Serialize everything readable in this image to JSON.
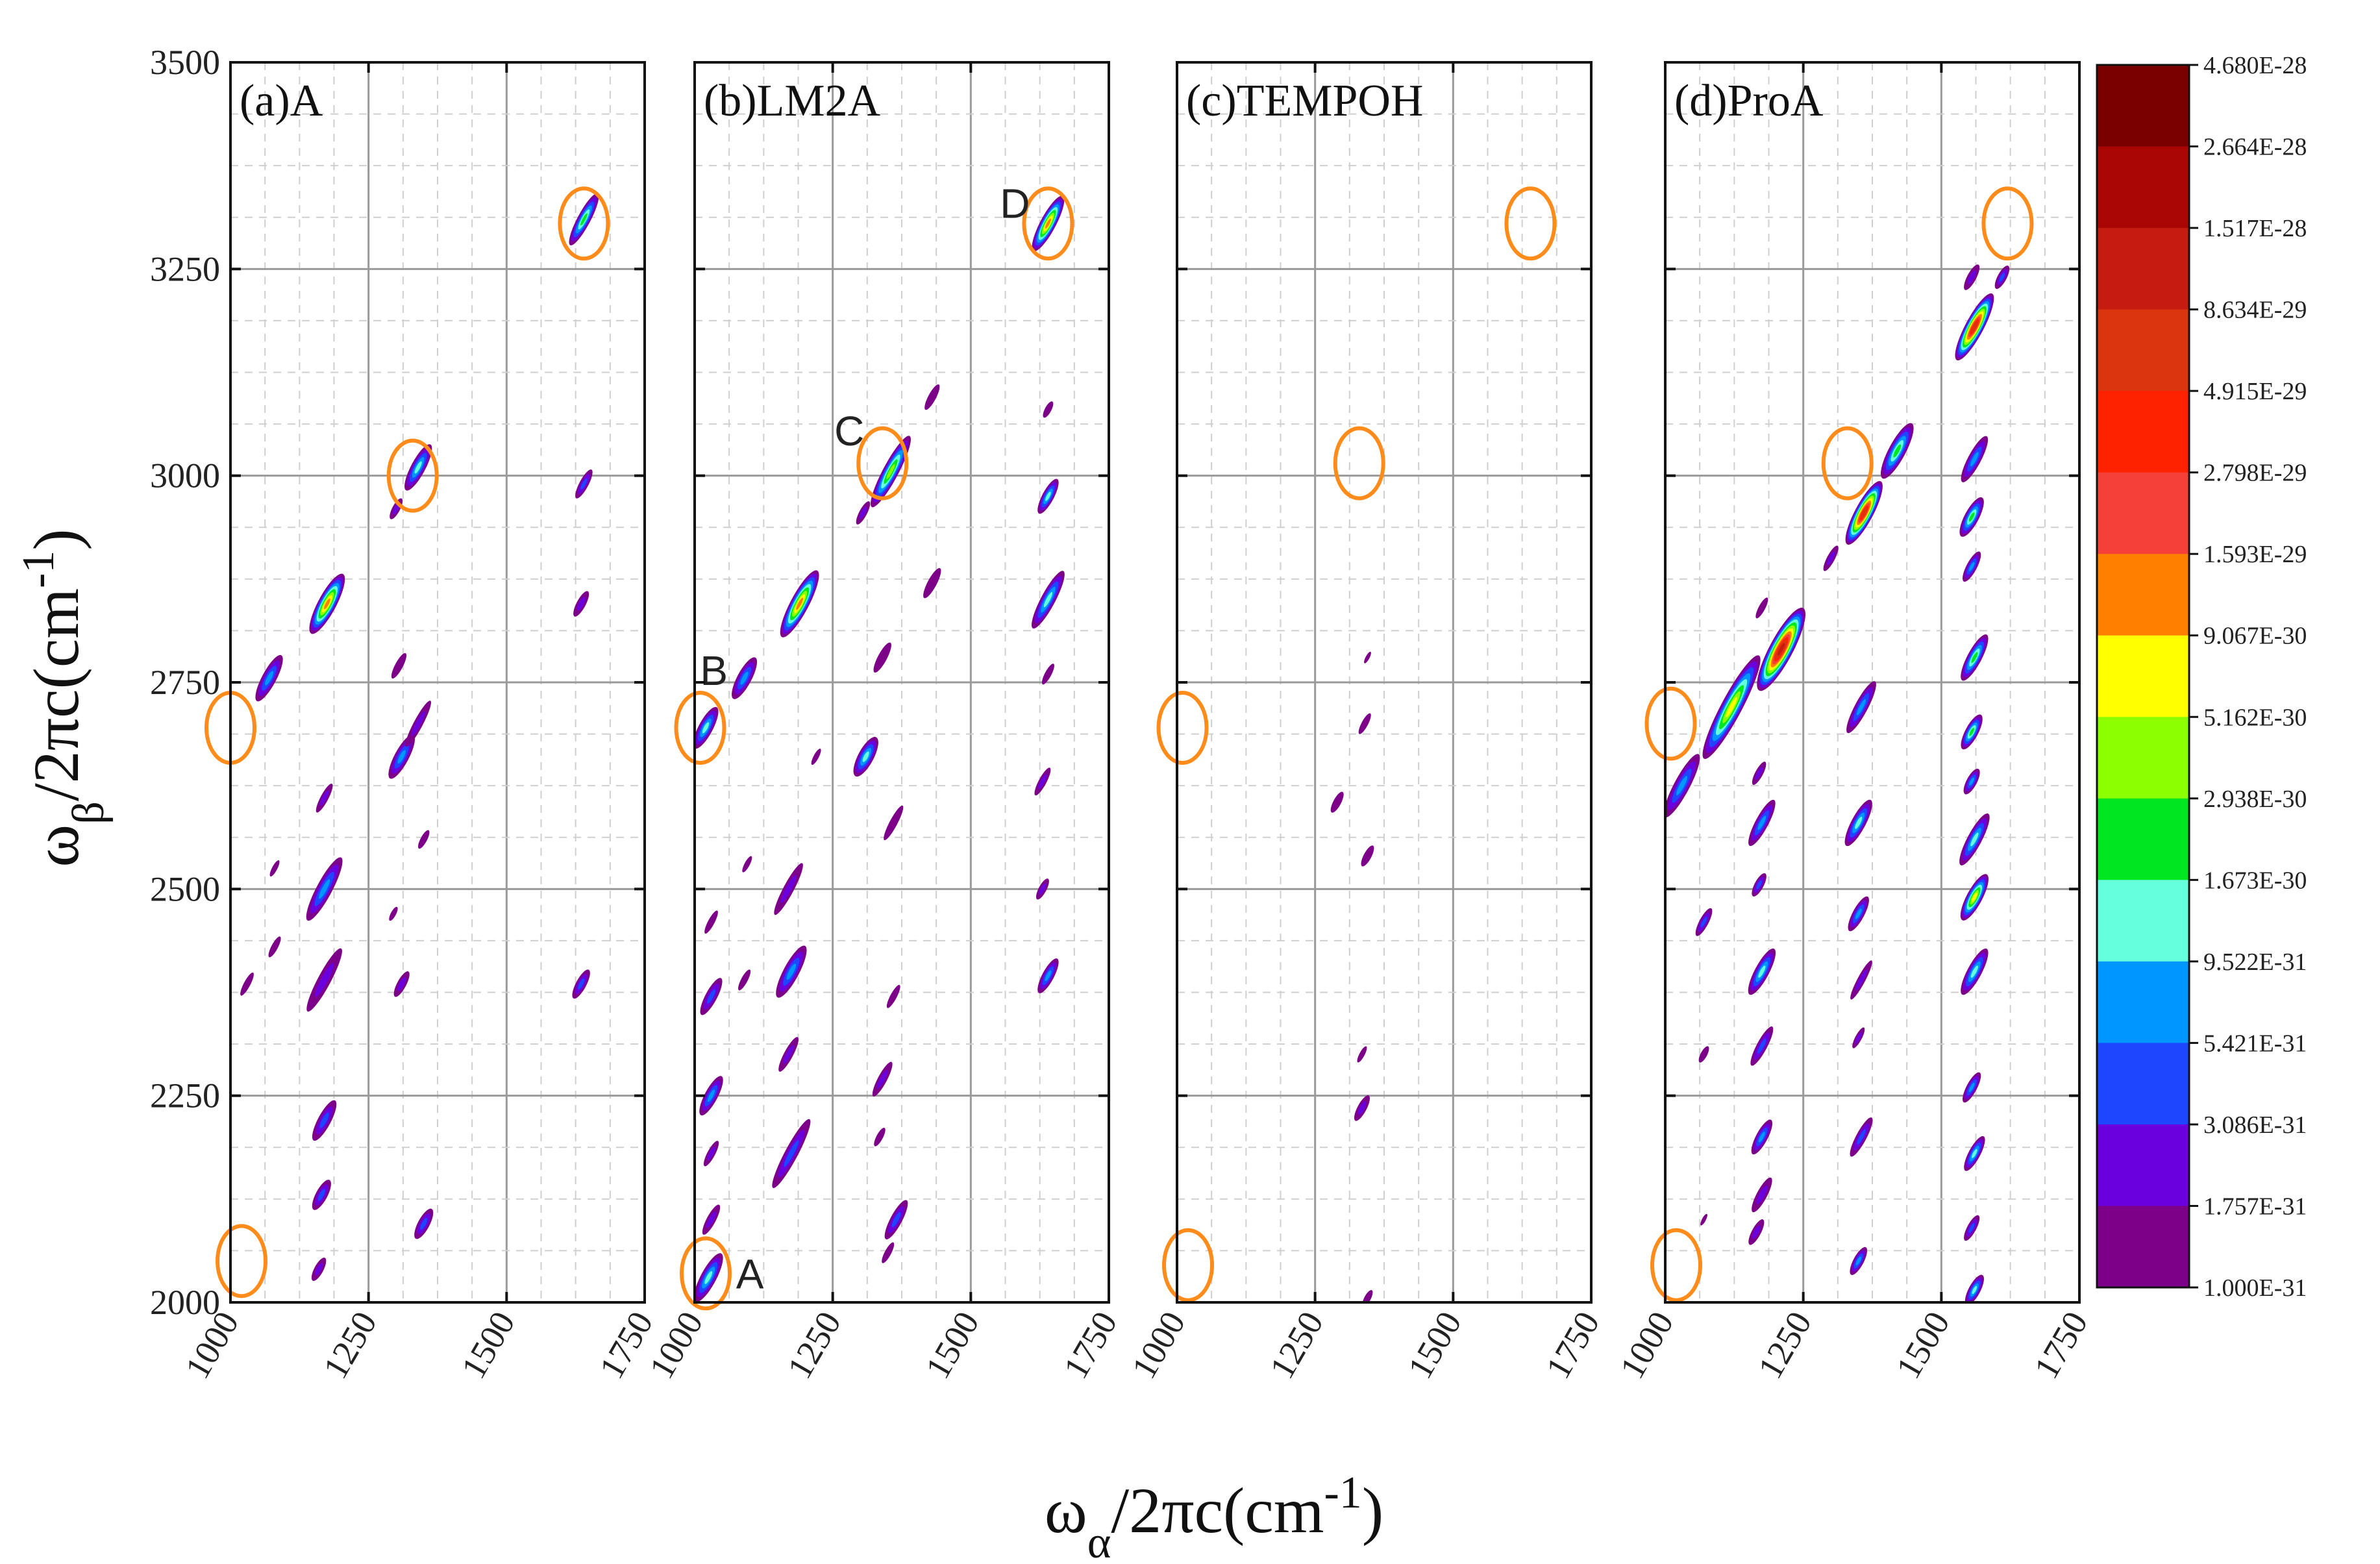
{
  "chart_data": {
    "type": "heatmap",
    "title": "",
    "xlabel": "ω_α/2πc(cm⁻¹)",
    "ylabel": "ω_β/2πc(cm⁻¹)",
    "xlabel_parts": {
      "main": "ω",
      "sub": "α",
      "rest": "/2πc(cm",
      "sup": "-1",
      "close": ")"
    },
    "ylabel_parts": {
      "main": "ω",
      "sub": "β",
      "rest": "/2πc(cm",
      "sup": "-1",
      "close": ")"
    },
    "xlim": [
      1000,
      1750
    ],
    "ylim": [
      2000,
      3500
    ],
    "x_ticks": [
      1000,
      1250,
      1500,
      1750
    ],
    "x_tick_labels": [
      "1000",
      "1250",
      "1500",
      "1750"
    ],
    "y_ticks": [
      2000,
      2250,
      2500,
      2750,
      3000,
      3250,
      3500
    ],
    "y_tick_labels": [
      "2000",
      "2250",
      "2500",
      "2750",
      "3000",
      "3250",
      "3500"
    ],
    "grid": true,
    "ellipse_color": "#ff8c1a",
    "colorbar": {
      "labels": [
        "4.680E-28",
        "2.664E-28",
        "1.517E-28",
        "8.634E-29",
        "4.915E-29",
        "2.798E-29",
        "1.593E-29",
        "9.067E-30",
        "5.162E-30",
        "2.938E-30",
        "1.673E-30",
        "9.522E-31",
        "5.421E-31",
        "3.086E-31",
        "1.757E-31",
        "1.000E-31"
      ],
      "colors": [
        "#7a0000",
        "#aa0606",
        "#c41c10",
        "#d9350e",
        "#ff2200",
        "#f5403a",
        "#ff8000",
        "#ffff00",
        "#8cff00",
        "#00e620",
        "#66ffdd",
        "#0096ff",
        "#1e46ff",
        "#6a00dd",
        "#7d0088"
      ]
    },
    "panels": [
      {
        "title": "(a)A",
        "ellipses": [
          [
            1640,
            3305
          ],
          [
            1330,
            3000
          ],
          [
            1000,
            2695
          ],
          [
            1020,
            2050
          ]
        ],
        "labels": [],
        "peaks": [
          {
            "x": 1640,
            "y": 3310,
            "level": 9,
            "len": 45,
            "wid": 10
          },
          {
            "x": 1340,
            "y": 3010,
            "level": 10,
            "len": 40,
            "wid": 11
          },
          {
            "x": 1300,
            "y": 2960,
            "level": 13,
            "len": 18,
            "wid": 6
          },
          {
            "x": 1175,
            "y": 2845,
            "level": 6,
            "len": 52,
            "wid": 14
          },
          {
            "x": 1070,
            "y": 2755,
            "level": 11,
            "len": 40,
            "wid": 11
          },
          {
            "x": 1310,
            "y": 2660,
            "level": 11,
            "len": 38,
            "wid": 11
          },
          {
            "x": 1340,
            "y": 2700,
            "level": 13,
            "len": 40,
            "wid": 7
          },
          {
            "x": 1305,
            "y": 2770,
            "level": 14,
            "len": 22,
            "wid": 6
          },
          {
            "x": 1640,
            "y": 2990,
            "level": 12,
            "len": 25,
            "wid": 7
          },
          {
            "x": 1635,
            "y": 2845,
            "level": 13,
            "len": 22,
            "wid": 7
          },
          {
            "x": 1170,
            "y": 2610,
            "level": 13,
            "len": 25,
            "wid": 6
          },
          {
            "x": 1170,
            "y": 2500,
            "level": 11,
            "len": 55,
            "wid": 12
          },
          {
            "x": 1170,
            "y": 2390,
            "level": 13,
            "len": 55,
            "wid": 10
          },
          {
            "x": 1310,
            "y": 2385,
            "level": 13,
            "len": 22,
            "wid": 7
          },
          {
            "x": 1635,
            "y": 2385,
            "level": 12,
            "len": 25,
            "wid": 8
          },
          {
            "x": 1170,
            "y": 2220,
            "level": 12,
            "len": 35,
            "wid": 10
          },
          {
            "x": 1165,
            "y": 2130,
            "level": 12,
            "len": 26,
            "wid": 9
          },
          {
            "x": 1160,
            "y": 2040,
            "level": 13,
            "len": 20,
            "wid": 7
          },
          {
            "x": 1350,
            "y": 2095,
            "level": 12,
            "len": 26,
            "wid": 9
          },
          {
            "x": 1080,
            "y": 2430,
            "level": 14,
            "len": 18,
            "wid": 5
          },
          {
            "x": 1030,
            "y": 2385,
            "level": 14,
            "len": 20,
            "wid": 5
          },
          {
            "x": 1080,
            "y": 2525,
            "level": 14,
            "len": 14,
            "wid": 4
          },
          {
            "x": 1350,
            "y": 2560,
            "level": 14,
            "len": 16,
            "wid": 5
          },
          {
            "x": 1295,
            "y": 2470,
            "level": 14,
            "len": 12,
            "wid": 4
          }
        ]
      },
      {
        "title": "(b)LM2A",
        "ellipses": [
          [
            1640,
            3305
          ],
          [
            1340,
            3015
          ],
          [
            1010,
            2695
          ],
          [
            1020,
            2035
          ]
        ],
        "labels": [
          {
            "text": "A",
            "x": 1100,
            "y": 2030
          },
          {
            "text": "B",
            "x": 1035,
            "y": 2760
          },
          {
            "text": "C",
            "x": 1280,
            "y": 3050
          },
          {
            "text": "D",
            "x": 1580,
            "y": 3325
          }
        ],
        "peaks": [
          {
            "x": 1640,
            "y": 3305,
            "level": 6,
            "len": 48,
            "wid": 12
          },
          {
            "x": 1355,
            "y": 3005,
            "level": 8,
            "len": 62,
            "wid": 12
          },
          {
            "x": 1305,
            "y": 2955,
            "level": 13,
            "len": 20,
            "wid": 6
          },
          {
            "x": 1190,
            "y": 2845,
            "level": 6,
            "len": 58,
            "wid": 14
          },
          {
            "x": 1090,
            "y": 2755,
            "level": 11,
            "len": 36,
            "wid": 11
          },
          {
            "x": 1020,
            "y": 2695,
            "level": 10,
            "len": 36,
            "wid": 11
          },
          {
            "x": 1310,
            "y": 2660,
            "level": 10,
            "len": 34,
            "wid": 12
          },
          {
            "x": 1640,
            "y": 2975,
            "level": 10,
            "len": 30,
            "wid": 9
          },
          {
            "x": 1640,
            "y": 2850,
            "level": 10,
            "len": 50,
            "wid": 11
          },
          {
            "x": 1640,
            "y": 2760,
            "level": 14,
            "len": 18,
            "wid": 5
          },
          {
            "x": 1630,
            "y": 2630,
            "level": 13,
            "len": 24,
            "wid": 6
          },
          {
            "x": 1640,
            "y": 2395,
            "level": 11,
            "len": 30,
            "wid": 9
          },
          {
            "x": 1630,
            "y": 2500,
            "level": 13,
            "len": 18,
            "wid": 6
          },
          {
            "x": 1430,
            "y": 3095,
            "level": 14,
            "len": 22,
            "wid": 6
          },
          {
            "x": 1430,
            "y": 2870,
            "level": 14,
            "len": 26,
            "wid": 7
          },
          {
            "x": 1340,
            "y": 2780,
            "level": 14,
            "len": 26,
            "wid": 7
          },
          {
            "x": 1360,
            "y": 2580,
            "level": 14,
            "len": 30,
            "wid": 6
          },
          {
            "x": 1175,
            "y": 2400,
            "level": 11,
            "len": 45,
            "wid": 12
          },
          {
            "x": 1170,
            "y": 2500,
            "level": 13,
            "len": 45,
            "wid": 8
          },
          {
            "x": 1175,
            "y": 2180,
            "level": 12,
            "len": 60,
            "wid": 10
          },
          {
            "x": 1170,
            "y": 2300,
            "level": 13,
            "len": 30,
            "wid": 7
          },
          {
            "x": 1030,
            "y": 2370,
            "level": 12,
            "len": 32,
            "wid": 9
          },
          {
            "x": 1030,
            "y": 2250,
            "level": 11,
            "len": 34,
            "wid": 10
          },
          {
            "x": 1030,
            "y": 2180,
            "level": 13,
            "len": 22,
            "wid": 6
          },
          {
            "x": 1025,
            "y": 2030,
            "level": 10,
            "len": 42,
            "wid": 12
          },
          {
            "x": 1030,
            "y": 2100,
            "level": 13,
            "len": 26,
            "wid": 7
          },
          {
            "x": 1030,
            "y": 2460,
            "level": 14,
            "len": 20,
            "wid": 5
          },
          {
            "x": 1340,
            "y": 2270,
            "level": 13,
            "len": 30,
            "wid": 7
          },
          {
            "x": 1365,
            "y": 2100,
            "level": 12,
            "len": 34,
            "wid": 9
          },
          {
            "x": 1350,
            "y": 2060,
            "level": 14,
            "len": 18,
            "wid": 5
          },
          {
            "x": 1090,
            "y": 2390,
            "level": 14,
            "len": 18,
            "wid": 5
          },
          {
            "x": 1095,
            "y": 2530,
            "level": 14,
            "len": 14,
            "wid": 4
          },
          {
            "x": 1220,
            "y": 2660,
            "level": 14,
            "len": 14,
            "wid": 4
          },
          {
            "x": 1360,
            "y": 2370,
            "level": 14,
            "len": 20,
            "wid": 5
          },
          {
            "x": 1335,
            "y": 2200,
            "level": 14,
            "len": 16,
            "wid": 5
          },
          {
            "x": 1640,
            "y": 3080,
            "level": 14,
            "len": 14,
            "wid": 5
          }
        ]
      },
      {
        "title": "(c)TEMPOH",
        "ellipses": [
          [
            1640,
            3305
          ],
          [
            1330,
            3015
          ],
          [
            1010,
            2695
          ],
          [
            1020,
            2045
          ]
        ],
        "labels": [],
        "peaks": [
          {
            "x": 1340,
            "y": 2700,
            "level": 14,
            "len": 18,
            "wid": 5
          },
          {
            "x": 1290,
            "y": 2605,
            "level": 14,
            "len": 18,
            "wid": 6
          },
          {
            "x": 1345,
            "y": 2540,
            "level": 14,
            "len": 18,
            "wid": 6
          },
          {
            "x": 1335,
            "y": 2235,
            "level": 13,
            "len": 22,
            "wid": 7
          },
          {
            "x": 1335,
            "y": 2300,
            "level": 14,
            "len": 14,
            "wid": 4
          },
          {
            "x": 1345,
            "y": 2005,
            "level": 14,
            "len": 14,
            "wid": 5
          },
          {
            "x": 1345,
            "y": 2780,
            "level": 14,
            "len": 10,
            "wid": 3
          }
        ]
      },
      {
        "title": "(d)ProA",
        "ellipses": [
          [
            1620,
            3305
          ],
          [
            1330,
            3015
          ],
          [
            1010,
            2700
          ],
          [
            1020,
            2045
          ]
        ],
        "labels": [],
        "peaks": [
          {
            "x": 1560,
            "y": 3180,
            "level": 3,
            "len": 58,
            "wid": 14
          },
          {
            "x": 1610,
            "y": 3240,
            "level": 12,
            "len": 20,
            "wid": 7
          },
          {
            "x": 1555,
            "y": 3240,
            "level": 13,
            "len": 22,
            "wid": 7
          },
          {
            "x": 1420,
            "y": 3030,
            "level": 9,
            "len": 48,
            "wid": 13
          },
          {
            "x": 1360,
            "y": 2955,
            "level": 3,
            "len": 55,
            "wid": 14
          },
          {
            "x": 1300,
            "y": 2900,
            "level": 13,
            "len": 22,
            "wid": 6
          },
          {
            "x": 1210,
            "y": 2790,
            "level": 2,
            "len": 72,
            "wid": 18
          },
          {
            "x": 1120,
            "y": 2720,
            "level": 7,
            "len": 90,
            "wid": 16
          },
          {
            "x": 1030,
            "y": 2625,
            "level": 11,
            "len": 55,
            "wid": 12
          },
          {
            "x": 1560,
            "y": 3020,
            "level": 11,
            "len": 40,
            "wid": 10
          },
          {
            "x": 1555,
            "y": 2950,
            "level": 9,
            "len": 34,
            "wid": 11
          },
          {
            "x": 1555,
            "y": 2890,
            "level": 11,
            "len": 26,
            "wid": 8
          },
          {
            "x": 1560,
            "y": 2780,
            "level": 9,
            "len": 40,
            "wid": 11
          },
          {
            "x": 1555,
            "y": 2690,
            "level": 9,
            "len": 30,
            "wid": 10
          },
          {
            "x": 1555,
            "y": 2630,
            "level": 11,
            "len": 22,
            "wid": 8
          },
          {
            "x": 1560,
            "y": 2560,
            "level": 10,
            "len": 45,
            "wid": 11
          },
          {
            "x": 1560,
            "y": 2490,
            "level": 7,
            "len": 40,
            "wid": 12
          },
          {
            "x": 1560,
            "y": 2400,
            "level": 10,
            "len": 40,
            "wid": 11
          },
          {
            "x": 1555,
            "y": 2260,
            "level": 11,
            "len": 26,
            "wid": 8
          },
          {
            "x": 1560,
            "y": 2180,
            "level": 10,
            "len": 30,
            "wid": 9
          },
          {
            "x": 1555,
            "y": 2090,
            "level": 12,
            "len": 22,
            "wid": 7
          },
          {
            "x": 1560,
            "y": 2015,
            "level": 10,
            "len": 26,
            "wid": 9
          },
          {
            "x": 1355,
            "y": 2720,
            "level": 11,
            "len": 45,
            "wid": 10
          },
          {
            "x": 1350,
            "y": 2580,
            "level": 10,
            "len": 40,
            "wid": 11
          },
          {
            "x": 1350,
            "y": 2470,
            "level": 11,
            "len": 30,
            "wid": 9
          },
          {
            "x": 1355,
            "y": 2390,
            "level": 13,
            "len": 34,
            "wid": 6
          },
          {
            "x": 1350,
            "y": 2320,
            "level": 13,
            "len": 18,
            "wid": 5
          },
          {
            "x": 1355,
            "y": 2200,
            "level": 12,
            "len": 34,
            "wid": 8
          },
          {
            "x": 1350,
            "y": 2050,
            "level": 11,
            "len": 24,
            "wid": 8
          },
          {
            "x": 1175,
            "y": 2580,
            "level": 11,
            "len": 40,
            "wid": 10
          },
          {
            "x": 1175,
            "y": 2400,
            "level": 10,
            "len": 40,
            "wid": 11
          },
          {
            "x": 1175,
            "y": 2310,
            "level": 12,
            "len": 34,
            "wid": 8
          },
          {
            "x": 1175,
            "y": 2200,
            "level": 11,
            "len": 30,
            "wid": 9
          },
          {
            "x": 1175,
            "y": 2130,
            "level": 13,
            "len": 30,
            "wid": 8
          },
          {
            "x": 1165,
            "y": 2085,
            "level": 13,
            "len": 22,
            "wid": 7
          },
          {
            "x": 1170,
            "y": 2640,
            "level": 13,
            "len": 20,
            "wid": 6
          },
          {
            "x": 1170,
            "y": 2505,
            "level": 12,
            "len": 20,
            "wid": 7
          },
          {
            "x": 1175,
            "y": 2840,
            "level": 14,
            "len": 18,
            "wid": 5
          },
          {
            "x": 1070,
            "y": 2460,
            "level": 12,
            "len": 24,
            "wid": 7
          },
          {
            "x": 1070,
            "y": 2300,
            "level": 14,
            "len": 14,
            "wid": 5
          },
          {
            "x": 1070,
            "y": 2100,
            "level": 14,
            "len": 10,
            "wid": 3
          }
        ]
      }
    ]
  }
}
